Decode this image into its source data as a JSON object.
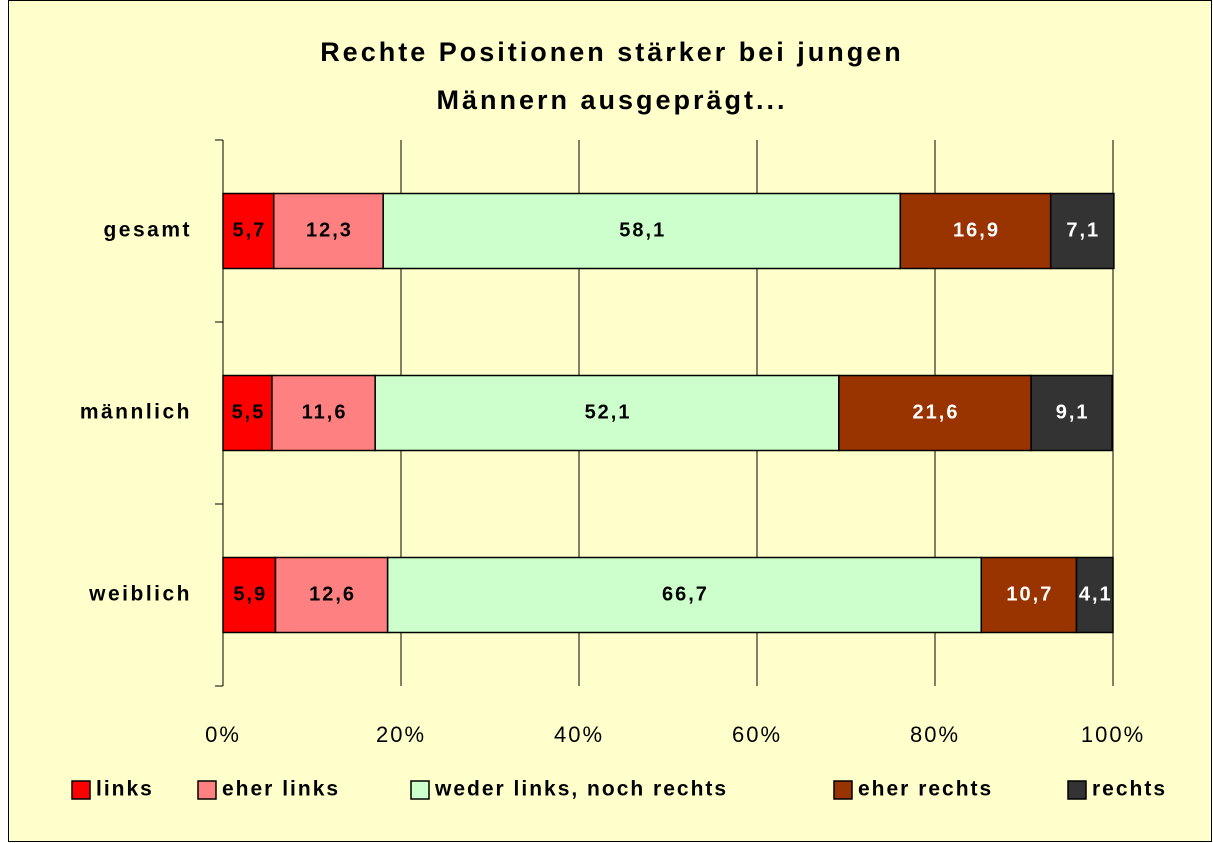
{
  "chart_data": {
    "type": "stacked_bar_horizontal",
    "title": [
      "Rechte Positionen stärker bei jungen",
      "Männern ausgeprägt..."
    ],
    "categories": [
      "gesamt",
      "männlich",
      "weiblich"
    ],
    "series": [
      {
        "name": "links",
        "color": "#ff0000",
        "label_color": "#000000",
        "values": [
          5.7,
          5.5,
          5.9
        ],
        "value_labels": [
          "5,7",
          "5,5",
          "5,9"
        ]
      },
      {
        "name": "eher links",
        "color": "#ff8080",
        "label_color": "#000000",
        "values": [
          12.3,
          11.6,
          12.6
        ],
        "value_labels": [
          "12,3",
          "11,6",
          "12,6"
        ]
      },
      {
        "name": "weder links, noch rechts",
        "color": "#ccffcc",
        "label_color": "#000000",
        "values": [
          58.1,
          52.1,
          66.7
        ],
        "value_labels": [
          "58,1",
          "52,1",
          "66,7"
        ]
      },
      {
        "name": "eher rechts",
        "color": "#993300",
        "label_color": "#ffffff",
        "values": [
          16.9,
          21.6,
          10.7
        ],
        "value_labels": [
          "16,9",
          "21,6",
          "10,7"
        ]
      },
      {
        "name": "rechts",
        "color": "#333333",
        "label_color": "#ffffff",
        "values": [
          7.1,
          9.1,
          4.1
        ],
        "value_labels": [
          "7,1",
          "9,1",
          "4,1"
        ]
      }
    ],
    "xlim": [
      0,
      100
    ],
    "xticks": [
      {
        "value": 0,
        "label": "0%"
      },
      {
        "value": 20,
        "label": "20%"
      },
      {
        "value": 40,
        "label": "40%"
      },
      {
        "value": 60,
        "label": "60%"
      },
      {
        "value": 80,
        "label": "80%"
      },
      {
        "value": 100,
        "label": "100%"
      }
    ],
    "grid": true,
    "legend": "bottom"
  }
}
